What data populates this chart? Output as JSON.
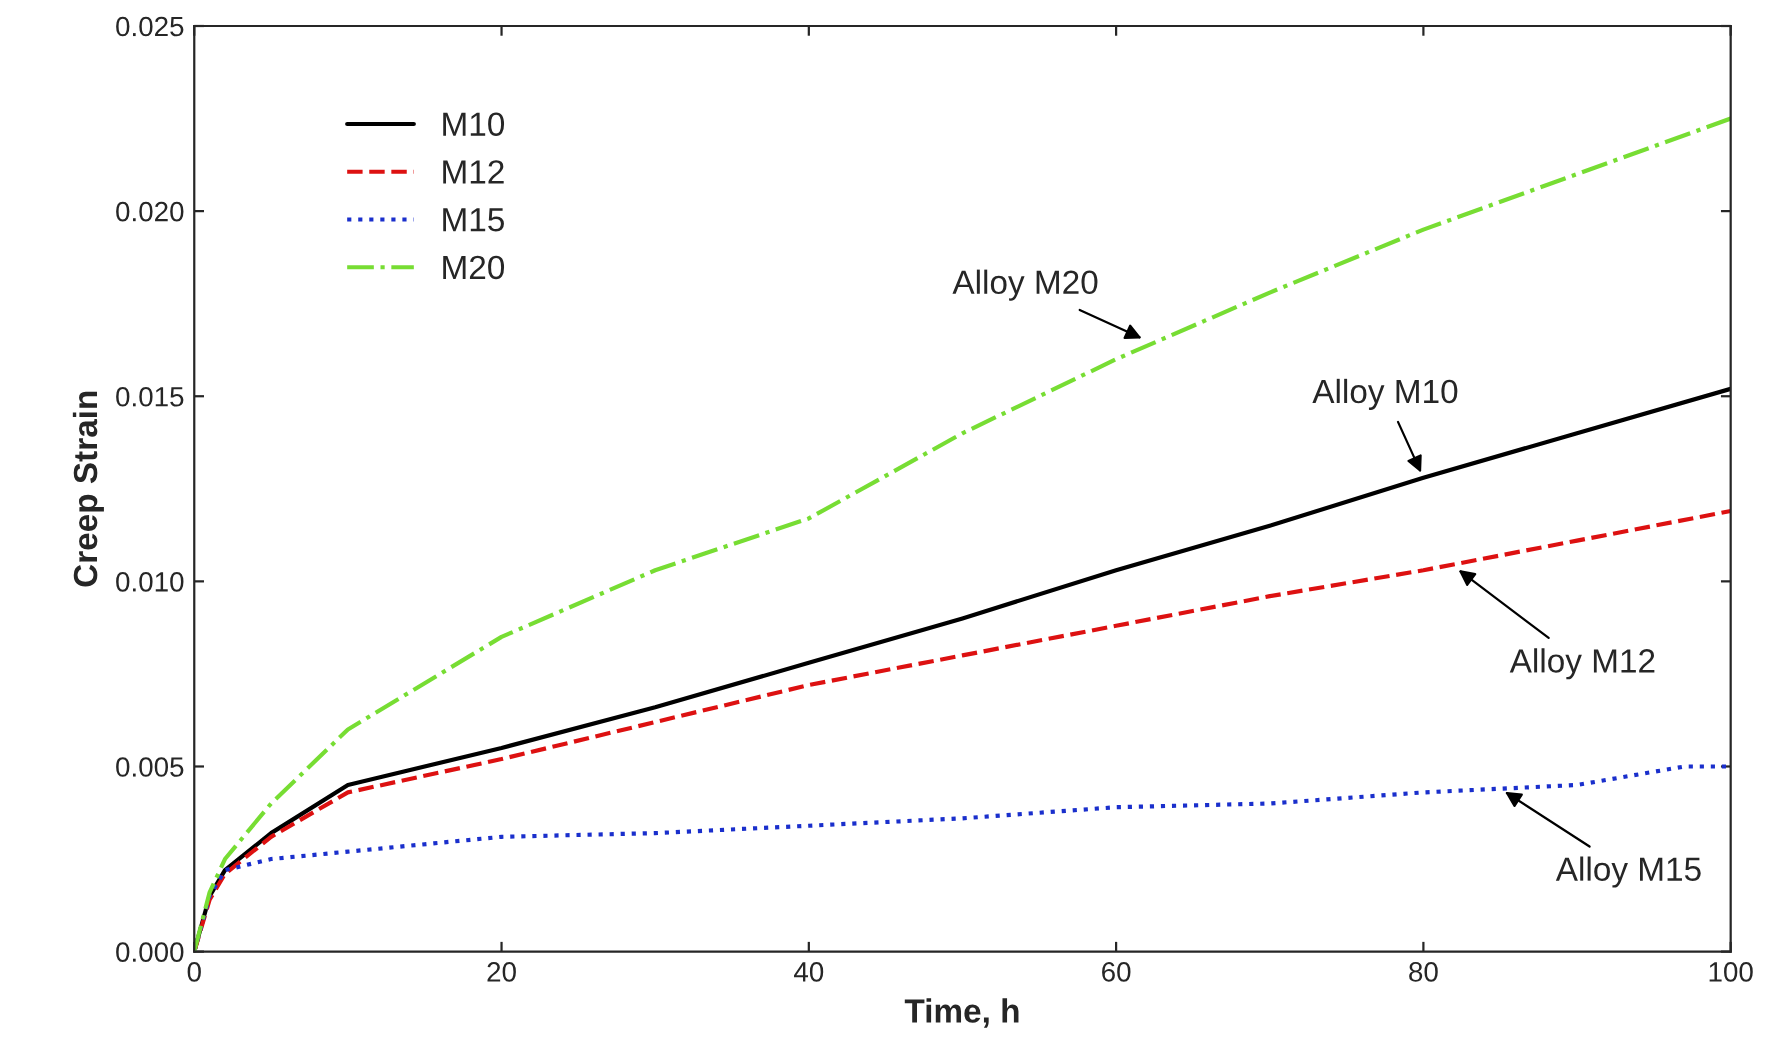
{
  "chart_data": {
    "type": "line",
    "xlabel": "Time, h",
    "ylabel": "Creep Strain",
    "xlim": [
      0,
      100
    ],
    "ylim": [
      0,
      0.025
    ],
    "xticks": [
      0,
      20,
      40,
      60,
      80,
      100
    ],
    "yticks": [
      {
        "value": 0,
        "label": "0.000"
      },
      {
        "value": 0.005,
        "label": "0.005"
      },
      {
        "value": 0.01,
        "label": "0.010"
      },
      {
        "value": 0.015,
        "label": "0.015"
      },
      {
        "value": 0.02,
        "label": "0.020"
      },
      {
        "value": 0.025,
        "label": "0.025"
      }
    ],
    "grid": false,
    "legend": "top left",
    "series": [
      {
        "name": "M10",
        "color": "#000000",
        "line_style": "solid",
        "x": [
          0,
          1,
          2,
          5,
          10,
          20,
          30,
          40,
          50,
          60,
          70,
          80,
          90,
          100
        ],
        "values": [
          0,
          0.0015,
          0.0022,
          0.0032,
          0.0045,
          0.0055,
          0.0066,
          0.0078,
          0.009,
          0.0103,
          0.0115,
          0.0128,
          0.014,
          0.0152
        ]
      },
      {
        "name": "M12",
        "color": "#dd1111",
        "line_style": "dashed",
        "x": [
          0,
          1,
          2,
          5,
          10,
          20,
          30,
          40,
          50,
          60,
          70,
          80,
          90,
          100
        ],
        "values": [
          0,
          0.0014,
          0.0021,
          0.0031,
          0.0043,
          0.0052,
          0.0062,
          0.0072,
          0.008,
          0.0088,
          0.0096,
          0.0103,
          0.0111,
          0.0119
        ]
      },
      {
        "name": "M15",
        "color": "#1a2fcc",
        "line_style": "dotted",
        "x": [
          0,
          1,
          2,
          5,
          10,
          20,
          30,
          40,
          50,
          60,
          70,
          80,
          90,
          97,
          100
        ],
        "values": [
          0,
          0.0015,
          0.0022,
          0.0025,
          0.0027,
          0.0031,
          0.0032,
          0.0034,
          0.0036,
          0.0039,
          0.004,
          0.0043,
          0.0045,
          0.005,
          0.005
        ]
      },
      {
        "name": "M20",
        "color": "#77dd33",
        "line_style": "dashdot",
        "x": [
          0,
          1,
          2,
          5,
          10,
          20,
          30,
          40,
          50,
          60,
          70,
          80,
          90,
          100
        ],
        "values": [
          0,
          0.0016,
          0.0025,
          0.004,
          0.006,
          0.0085,
          0.0103,
          0.0117,
          0.014,
          0.016,
          0.0178,
          0.0195,
          0.021,
          0.0225
        ]
      }
    ],
    "annotations": [
      {
        "text": "Alloy M20",
        "x": 62,
        "y": 0.0165
      },
      {
        "text": "Alloy M10",
        "x": 80,
        "y": 0.0128
      },
      {
        "text": "Alloy M12",
        "x": 82,
        "y": 0.0104
      },
      {
        "text": "Alloy M15",
        "x": 85,
        "y": 0.0044
      }
    ]
  }
}
